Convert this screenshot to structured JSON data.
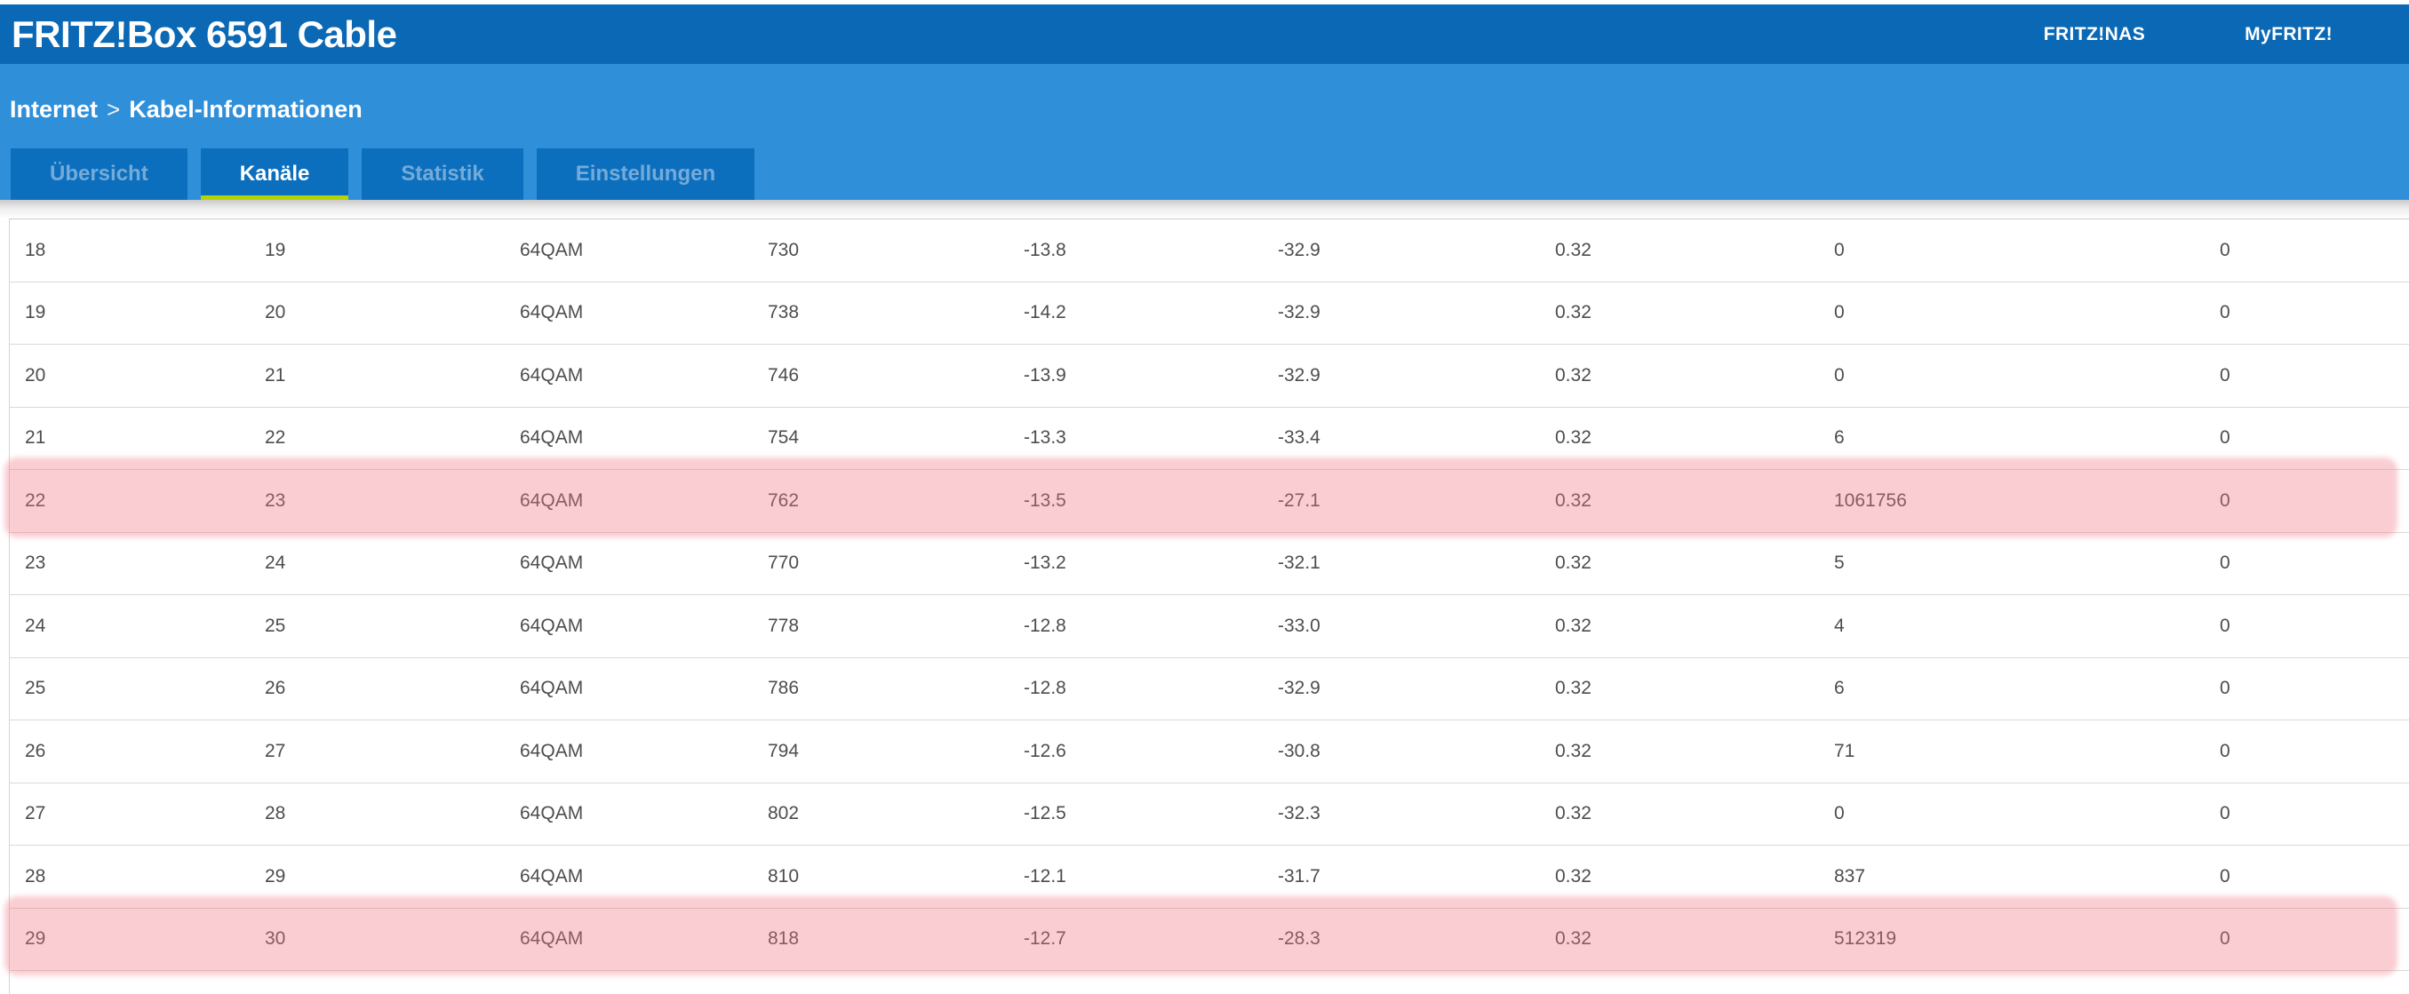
{
  "header": {
    "title": "FRITZ!Box 6591 Cable",
    "links": [
      {
        "label": "FRITZ!NAS"
      },
      {
        "label": "MyFRITZ!"
      }
    ]
  },
  "breadcrumb": {
    "section": "Internet",
    "separator": ">",
    "page": "Kabel-Informationen"
  },
  "tabs": [
    {
      "label": "Übersicht",
      "active": false
    },
    {
      "label": "Kanäle",
      "active": true
    },
    {
      "label": "Statistik",
      "active": false
    },
    {
      "label": "Einstellungen",
      "active": false
    }
  ],
  "channels_table": {
    "rows": [
      {
        "highlighted": false,
        "cells": [
          "18",
          "19",
          "64QAM",
          "730",
          "-13.8",
          "-32.9",
          "0.32",
          "0",
          "0"
        ]
      },
      {
        "highlighted": false,
        "cells": [
          "19",
          "20",
          "64QAM",
          "738",
          "-14.2",
          "-32.9",
          "0.32",
          "0",
          "0"
        ]
      },
      {
        "highlighted": false,
        "cells": [
          "20",
          "21",
          "64QAM",
          "746",
          "-13.9",
          "-32.9",
          "0.32",
          "0",
          "0"
        ]
      },
      {
        "highlighted": false,
        "cells": [
          "21",
          "22",
          "64QAM",
          "754",
          "-13.3",
          "-33.4",
          "0.32",
          "6",
          "0"
        ]
      },
      {
        "highlighted": true,
        "cells": [
          "22",
          "23",
          "64QAM",
          "762",
          "-13.5",
          "-27.1",
          "0.32",
          "1061756",
          "0"
        ]
      },
      {
        "highlighted": false,
        "cells": [
          "23",
          "24",
          "64QAM",
          "770",
          "-13.2",
          "-32.1",
          "0.32",
          "5",
          "0"
        ]
      },
      {
        "highlighted": false,
        "cells": [
          "24",
          "25",
          "64QAM",
          "778",
          "-12.8",
          "-33.0",
          "0.32",
          "4",
          "0"
        ]
      },
      {
        "highlighted": false,
        "cells": [
          "25",
          "26",
          "64QAM",
          "786",
          "-12.8",
          "-32.9",
          "0.32",
          "6",
          "0"
        ]
      },
      {
        "highlighted": false,
        "cells": [
          "26",
          "27",
          "64QAM",
          "794",
          "-12.6",
          "-30.8",
          "0.32",
          "71",
          "0"
        ]
      },
      {
        "highlighted": false,
        "cells": [
          "27",
          "28",
          "64QAM",
          "802",
          "-12.5",
          "-32.3",
          "0.32",
          "0",
          "0"
        ]
      },
      {
        "highlighted": false,
        "cells": [
          "28",
          "29",
          "64QAM",
          "810",
          "-12.1",
          "-31.7",
          "0.32",
          "837",
          "0"
        ]
      },
      {
        "highlighted": true,
        "cells": [
          "29",
          "30",
          "64QAM",
          "818",
          "-12.7",
          "-28.3",
          "0.32",
          "512319",
          "0"
        ]
      }
    ]
  },
  "colors": {
    "header_bar": "#0a68b5",
    "sub_bar": "#2f8fd9",
    "tab_background": "#0c6fbd",
    "tab_inactive_text": "#74abd9",
    "active_tab_underline": "#b5d303",
    "highlight_pink": "rgba(240,116,130,0.36)",
    "row_text": "#4d4d4d",
    "row_border": "#d9d9d9"
  }
}
